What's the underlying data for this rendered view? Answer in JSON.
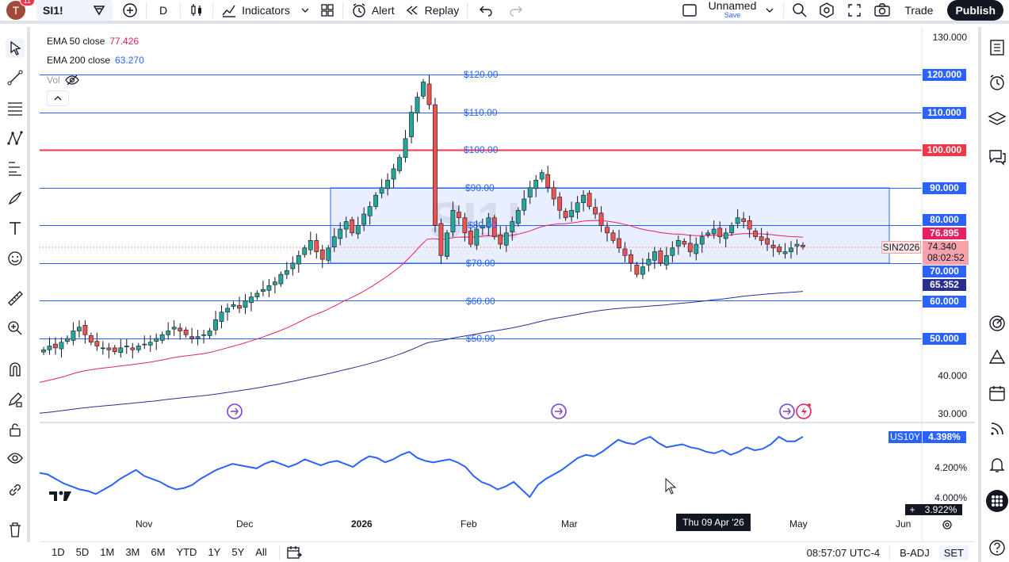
{
  "topbar": {
    "avatar_letter": "T",
    "notification_count": "11",
    "symbol": "SI1!",
    "interval": "D",
    "indicators_label": "Indicators",
    "alert_label": "Alert",
    "replay_label": "Replay",
    "layout_name": "Unnamed",
    "layout_save": "Save",
    "trade_label": "Trade",
    "publish_label": "Publish"
  },
  "legend": {
    "ema50_label": "EMA 50 close",
    "ema50_value": "77.426",
    "ema200_label": "EMA 200 close",
    "ema200_value": "63.270",
    "vol_label": "Vol"
  },
  "price_axis": {
    "ticks": [
      "130.000",
      "40.000",
      "30.000"
    ],
    "level_tags": [
      "120.000",
      "110.000",
      "100.000",
      "90.000",
      "80.000",
      "70.000",
      "60.000",
      "50.000"
    ],
    "ema50_tag": "76.895",
    "ema200_tag": "65.352",
    "symbol_tag": "SIN2026",
    "last_price": "74.340",
    "countdown": "08:02:52"
  },
  "level_labels": [
    "$120.00",
    "$110.00",
    "$100.00",
    "$90.00",
    "$80.00",
    "$70.00",
    "$60.00",
    "$50.00"
  ],
  "watermark": "SI1!",
  "lower_pane": {
    "symbol_tag": "US10Y",
    "value_tag": "4.398%",
    "ticks": [
      "4.200%",
      "4.000%"
    ],
    "low_tag": "3.922%"
  },
  "time_axis": {
    "ticks": [
      "Nov",
      "Dec",
      "2026",
      "Feb",
      "Mar",
      "May",
      "Jun"
    ],
    "crosshair": "Thu 09 Apr '26"
  },
  "bottombar": {
    "ranges": [
      "1D",
      "5D",
      "1M",
      "3M",
      "6M",
      "YTD",
      "1Y",
      "5Y",
      "All"
    ],
    "clock": "08:57:07 UTC-4",
    "badj": "B-ADJ",
    "set": "SET"
  },
  "colors": {
    "up": "#26a69a",
    "down": "#ef5350",
    "ema50": "#e91e63",
    "ema200": "#2962ff",
    "level_line": "#2962ff",
    "level_100": "#f23645",
    "box_fill": "rgba(41,98,255,0.12)",
    "us10y": "#2962ff"
  },
  "chart_data": {
    "type": "candlestick",
    "title": "SI1!",
    "price_ylim": [
      25,
      135
    ],
    "horizontal_levels": [
      120,
      110,
      100,
      90,
      80,
      70,
      60,
      50
    ],
    "range_box": [
      70,
      90
    ],
    "ema50": [
      77.426
    ],
    "ema200": [
      63.27
    ],
    "last_price": 74.34,
    "us10y_last": 4.398,
    "closes": [
      47,
      48,
      47.5,
      49,
      50,
      52,
      53,
      51,
      49,
      48,
      47.5,
      47,
      46.5,
      47.5,
      48,
      47,
      48,
      48.5,
      49,
      50,
      51,
      52,
      53,
      52,
      51,
      50,
      50.5,
      51,
      52,
      55,
      57,
      58,
      59,
      58,
      60,
      61,
      62,
      63,
      64,
      65,
      67,
      68,
      70,
      72,
      74,
      76,
      73,
      71,
      74,
      77,
      79,
      81,
      78,
      80,
      83,
      85,
      88,
      90,
      92,
      95,
      98,
      103,
      110,
      114,
      118,
      112,
      80,
      72,
      78,
      84,
      82,
      78,
      75,
      79,
      80,
      82,
      77,
      75,
      78,
      81,
      84,
      87,
      90,
      92,
      94,
      90,
      87,
      84,
      82,
      84,
      86,
      88,
      85,
      83,
      80,
      78,
      76,
      74,
      72,
      70,
      67,
      69,
      71,
      73,
      70,
      72,
      74,
      76,
      75,
      73,
      75,
      77,
      78,
      79,
      77,
      78,
      80,
      82,
      81,
      79,
      77,
      76,
      75,
      74,
      73,
      73,
      74,
      75,
      74.34
    ],
    "us10y": [
      4.16,
      4.15,
      4.12,
      4.09,
      4.07,
      4.05,
      4.04,
      4.02,
      4.05,
      4.08,
      4.12,
      4.15,
      4.18,
      4.14,
      4.12,
      4.1,
      4.07,
      4.05,
      4.06,
      4.08,
      4.12,
      4.15,
      4.18,
      4.2,
      4.22,
      4.21,
      4.2,
      4.19,
      4.22,
      4.24,
      4.22,
      4.2,
      4.22,
      4.25,
      4.23,
      4.21,
      4.23,
      4.24,
      4.22,
      4.2,
      4.24,
      4.27,
      4.26,
      4.23,
      4.25,
      4.28,
      4.3,
      4.26,
      4.24,
      4.23,
      4.24,
      4.25,
      4.23,
      4.2,
      4.14,
      4.1,
      4.08,
      4.05,
      4.07,
      4.1,
      4.05,
      4.0,
      4.08,
      4.12,
      4.15,
      4.18,
      4.22,
      4.26,
      4.28,
      4.27,
      4.3,
      4.34,
      4.38,
      4.36,
      4.35,
      4.38,
      4.4,
      4.36,
      4.33,
      4.34,
      4.35,
      4.33,
      4.32,
      4.3,
      4.29,
      4.31,
      4.28,
      4.3,
      4.33,
      4.31,
      4.32,
      4.35,
      4.4,
      4.37,
      4.37,
      4.4
    ]
  }
}
